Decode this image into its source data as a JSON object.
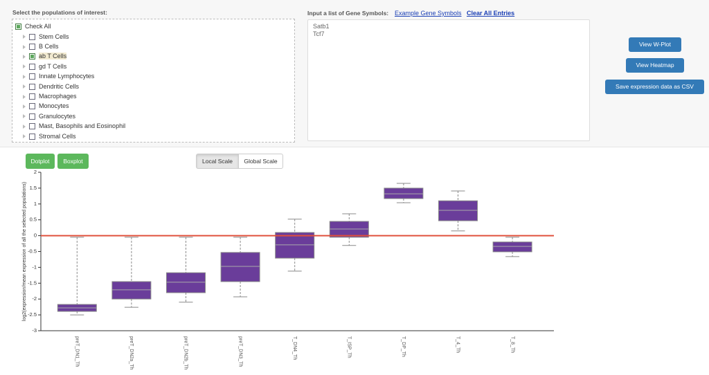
{
  "populations": {
    "title": "Select the populations of interest:",
    "check_all": {
      "label": "Check All",
      "checked": true
    },
    "items": [
      {
        "label": "Stem Cells",
        "checked": false
      },
      {
        "label": "B Cells",
        "checked": false
      },
      {
        "label": "ab T Cells",
        "checked": true
      },
      {
        "label": "gd T Cells",
        "checked": false
      },
      {
        "label": "Innate Lymphocytes",
        "checked": false
      },
      {
        "label": "Dendritic Cells",
        "checked": false
      },
      {
        "label": "Macrophages",
        "checked": false
      },
      {
        "label": "Monocytes",
        "checked": false
      },
      {
        "label": "Granulocytes",
        "checked": false
      },
      {
        "label": "Mast, Basophils and Eosinophil",
        "checked": false
      },
      {
        "label": "Stromal Cells",
        "checked": false
      }
    ]
  },
  "genes": {
    "title": "Input a list of Gene Symbols:",
    "example_link": "Example Gene Symbols",
    "clear_link": "Clear All Entries",
    "entries": [
      "Satb1",
      "Tcf7"
    ]
  },
  "actions": [
    "View W-Plot",
    "View Heatmap",
    "Save expression data as CSV"
  ],
  "plot_buttons": [
    "Dotplot",
    "Boxplot"
  ],
  "scale_buttons": [
    {
      "label": "Local Scale",
      "active": true
    },
    {
      "label": "Global Scale",
      "active": false
    }
  ],
  "chart_data": {
    "type": "box",
    "y_label": "log2(expression/mean expression of all the selected populations)",
    "categories": [
      "preT_DN1_Th",
      "preT_DN2a_Th",
      "preT_DN2b_Th",
      "preT_DN3_Th",
      "T_DN4_Th",
      "T_ISP_Th",
      "T_DP_Th",
      "T_4_Th",
      "T_8_Th"
    ],
    "boxes": [
      {
        "min": -2.5,
        "q1": -2.39,
        "median": -2.28,
        "q3": -2.17,
        "max": -0.05
      },
      {
        "min": -2.26,
        "q1": -2.0,
        "median": -1.71,
        "q3": -1.45,
        "max": -0.05
      },
      {
        "min": -2.1,
        "q1": -1.8,
        "median": -1.47,
        "q3": -1.17,
        "max": -0.05
      },
      {
        "min": -1.93,
        "q1": -1.45,
        "median": -0.97,
        "q3": -0.53,
        "max": -0.05
      },
      {
        "min": -1.12,
        "q1": -0.71,
        "median": -0.29,
        "q3": 0.1,
        "max": 0.52
      },
      {
        "min": -0.31,
        "q1": -0.05,
        "median": 0.21,
        "q3": 0.45,
        "max": 0.69
      },
      {
        "min": 1.04,
        "q1": 1.17,
        "median": 1.32,
        "q3": 1.5,
        "max": 1.65
      },
      {
        "min": 0.15,
        "q1": 0.47,
        "median": 0.8,
        "q3": 1.1,
        "max": 1.41
      },
      {
        "min": -0.66,
        "q1": -0.51,
        "median": -0.34,
        "q3": -0.2,
        "max": -0.05
      }
    ],
    "color": "#6a3d9a",
    "ylim": [
      -3,
      2
    ],
    "yticks": [
      -3,
      -2.5,
      -2,
      -1.5,
      -1,
      -0.5,
      0,
      0.5,
      1,
      1.5,
      2
    ],
    "reference_line": 0,
    "reference_color": "#e0503c"
  }
}
